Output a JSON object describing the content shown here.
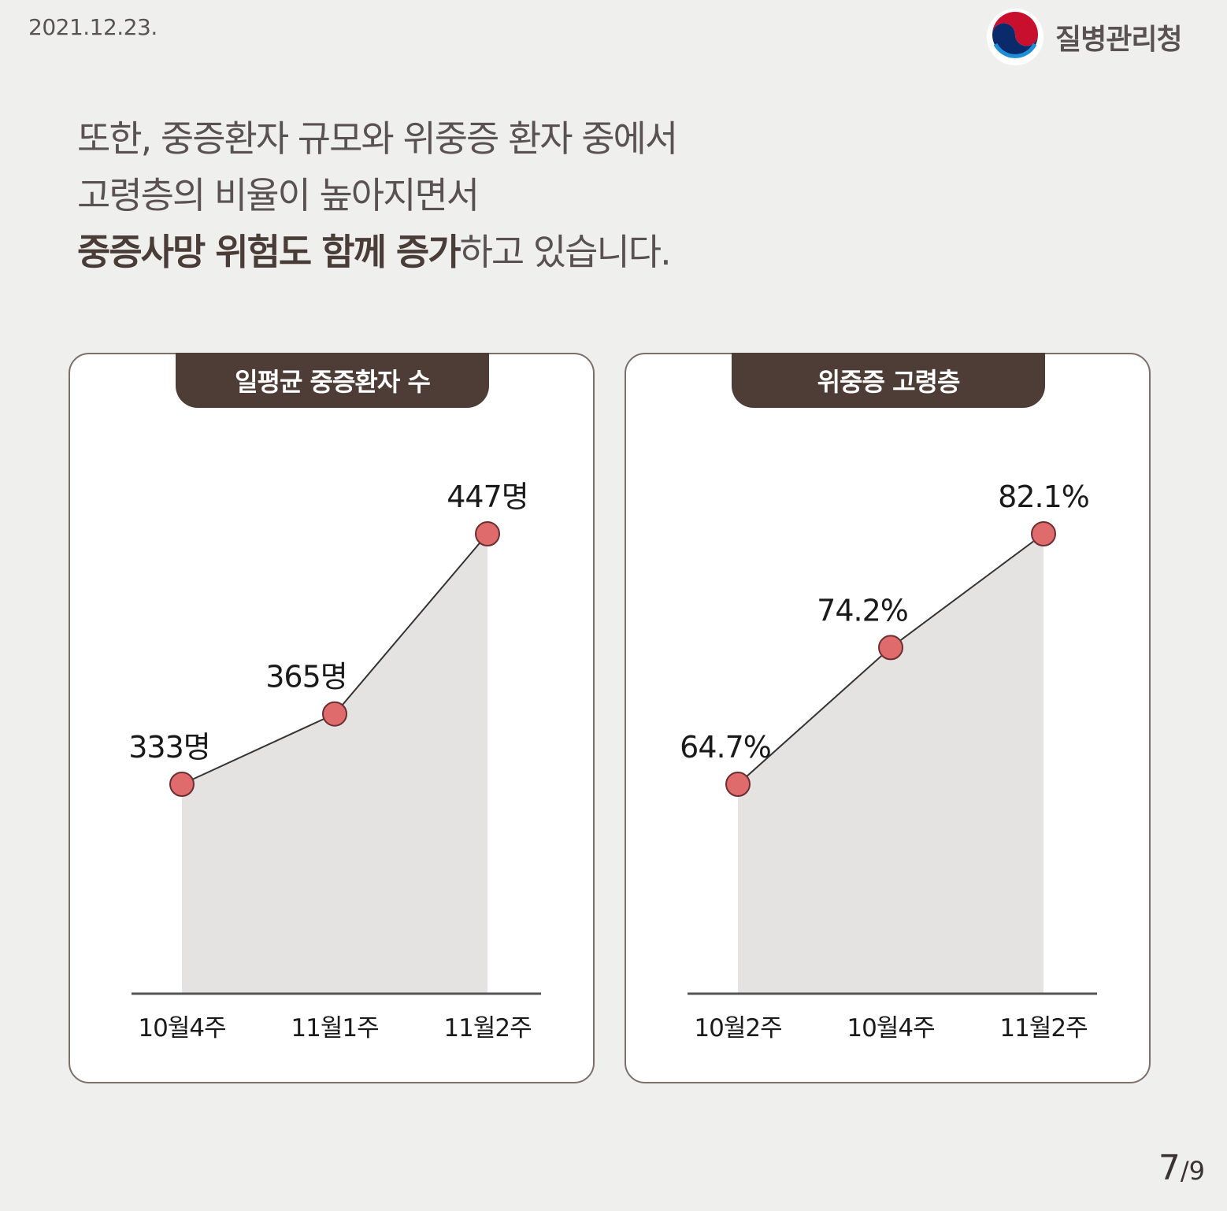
{
  "date": "2021.12.23.",
  "agency": {
    "name": "질병관리청"
  },
  "headline": {
    "line1": "또한, 중증환자 규모와 위중증 환자 중에서",
    "line2": "고령층의 비율이 높아지면서",
    "line3_bold": "중증사망 위험도 함께 증가",
    "line3_rest": "하고 있습니다."
  },
  "colors": {
    "tab": "#4e3d36",
    "area": "#e5e3e2",
    "point": "#e06b6c",
    "line": "#333333"
  },
  "chart_data": [
    {
      "type": "area",
      "title": "일평균 중증환자 수",
      "categories": [
        "10월4주",
        "11월1주",
        "11월2주"
      ],
      "values": [
        333,
        365,
        447
      ],
      "labels": [
        "333명",
        "365명",
        "447명"
      ],
      "grid": false
    },
    {
      "type": "area",
      "title": "위중증 고령층",
      "categories": [
        "10월2주",
        "10월4주",
        "11월2주"
      ],
      "values": [
        64.7,
        74.2,
        82.1
      ],
      "labels": [
        "64.7%",
        "74.2%",
        "82.1%"
      ],
      "grid": false
    }
  ],
  "page": {
    "current": "7",
    "total": "/9"
  }
}
